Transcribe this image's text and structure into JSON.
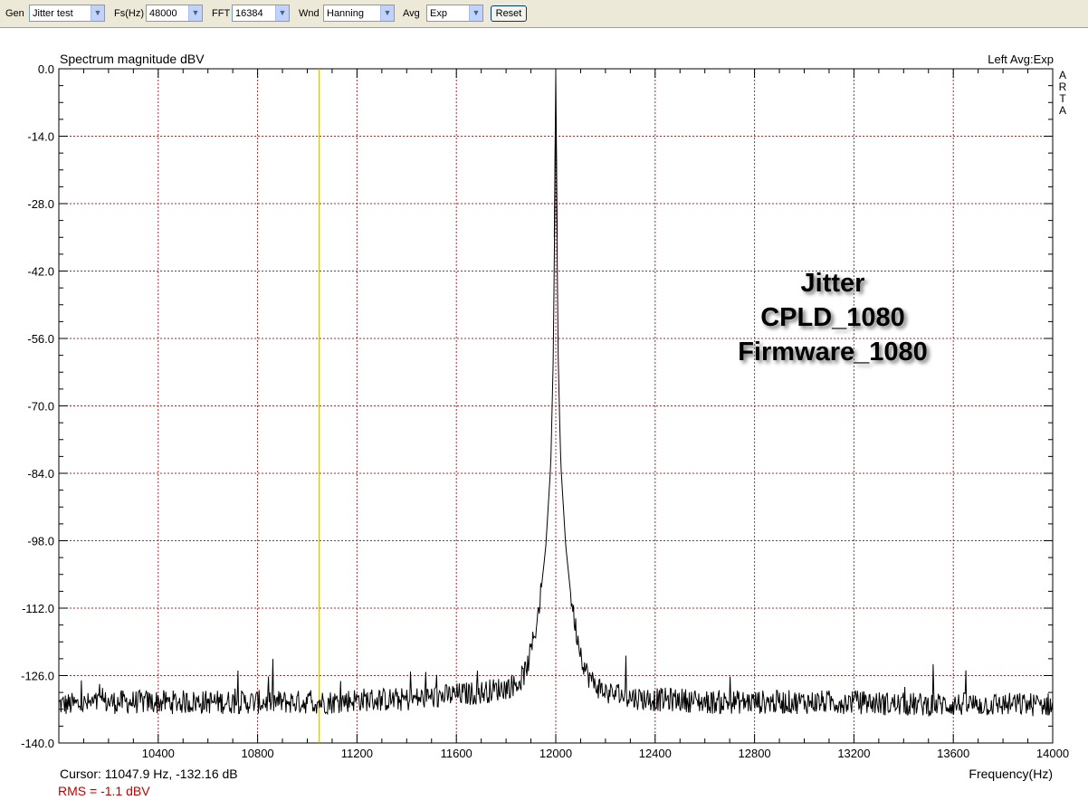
{
  "toolbar": {
    "gen_label": "Gen",
    "gen_value": "Jitter test",
    "fs_label": "Fs(Hz)",
    "fs_value": "48000",
    "fft_label": "FFT",
    "fft_value": "16384",
    "wnd_label": "Wnd",
    "wnd_value": "Hanning",
    "avg_label": "Avg",
    "avg_value": "Exp",
    "reset_label": "Reset",
    "arrow_icon": "▼"
  },
  "plot": {
    "ylabel": "Spectrum magnitude dBV",
    "channel_info": "Left  Avg:Exp",
    "side_letters": [
      "A",
      "R",
      "T",
      "A"
    ],
    "xlabel": "Frequency(Hz)",
    "cursor_text": "Cursor: 11047.9 Hz, -132.16 dB",
    "rms_text": "RMS =   -1.1 dBV",
    "overlay_lines": [
      "Jitter",
      "CPLD_1080",
      "Firmware_1080"
    ],
    "grid_color": "#a03030",
    "trace_color": "#000000",
    "cursor_color": "#c8b400",
    "rms_color": "#c00000"
  },
  "chart_data": {
    "type": "line",
    "title": "Spectrum magnitude dBV",
    "xlabel": "Frequency(Hz)",
    "ylabel": "",
    "xlim": [
      10000,
      14000
    ],
    "ylim": [
      -140,
      0
    ],
    "x_ticks": [
      10400,
      10800,
      11200,
      11600,
      12000,
      12400,
      12800,
      13200,
      13600,
      14000
    ],
    "y_ticks": [
      0.0,
      -14.0,
      -28.0,
      -42.0,
      -56.0,
      -70.0,
      -84.0,
      -98.0,
      -112.0,
      -126.0,
      -140.0
    ],
    "cursor_x": 11047.9,
    "series": [
      {
        "x": [
          10000,
          10100,
          10200,
          10300,
          10400,
          10500,
          10600,
          10700,
          10800,
          10900,
          11000,
          11100,
          11200,
          11300,
          11400,
          11500,
          11600,
          11700,
          11800,
          11850,
          11880,
          11900,
          11920,
          11940,
          11960,
          11980,
          11990,
          11995,
          12000,
          12005,
          12010,
          12020,
          12040,
          12060,
          12080,
          12100,
          12120,
          12150,
          12200,
          12300,
          12400,
          12500,
          12600,
          12800,
          13000,
          13200,
          13400,
          13600,
          13800,
          14000
        ],
        "values": [
          -132,
          -132,
          -131.5,
          -131.5,
          -131.5,
          -131.5,
          -131.5,
          -131.5,
          -131.5,
          -131.5,
          -131.5,
          -131.5,
          -131,
          -131,
          -131,
          -130.5,
          -130,
          -129.5,
          -128.5,
          -127.5,
          -125,
          -121,
          -116,
          -109,
          -99,
          -82,
          -60,
          -35,
          -3.5,
          -35,
          -60,
          -82,
          -99,
          -109,
          -116,
          -121,
          -125,
          -127.5,
          -129.5,
          -130.5,
          -131,
          -131,
          -131.5,
          -131.5,
          -131.5,
          -131.5,
          -132,
          -132,
          -132,
          -132
        ]
      }
    ]
  }
}
